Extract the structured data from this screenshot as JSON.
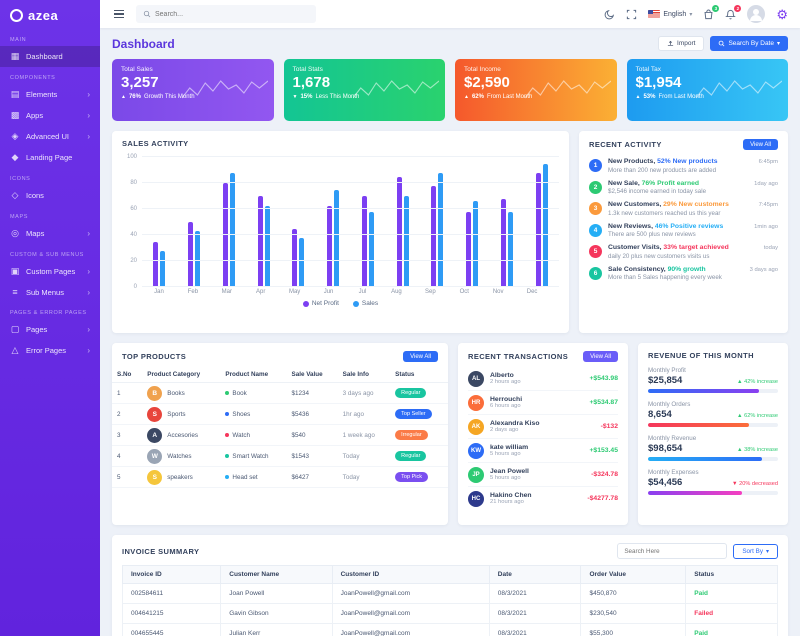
{
  "brand": {
    "name": "azea"
  },
  "colors": {
    "brand_purple": "#6a2fe8",
    "primary_blue": "#2d6cf6",
    "success_green": "#2dca73",
    "danger_red": "#f5365c"
  },
  "sidebar": {
    "sections": [
      {
        "label": "MAIN",
        "items": [
          {
            "label": "Dashboard",
            "icon": "dashboard-icon",
            "active": true,
            "chevron": false
          }
        ]
      },
      {
        "label": "COMPONENTS",
        "items": [
          {
            "label": "Elements",
            "icon": "elements-icon",
            "active": false,
            "chevron": true
          },
          {
            "label": "Apps",
            "icon": "apps-icon",
            "active": false,
            "chevron": true
          },
          {
            "label": "Advanced UI",
            "icon": "advanced-ui-icon",
            "active": false,
            "chevron": true
          },
          {
            "label": "Landing Page",
            "icon": "landing-page-icon",
            "active": false,
            "chevron": false
          }
        ]
      },
      {
        "label": "ICONS",
        "items": [
          {
            "label": "Icons",
            "icon": "icons-icon",
            "active": false,
            "chevron": false
          }
        ]
      },
      {
        "label": "MAPS",
        "items": [
          {
            "label": "Maps",
            "icon": "maps-icon",
            "active": false,
            "chevron": true
          }
        ]
      },
      {
        "label": "CUSTOM & SUB MENUS",
        "items": [
          {
            "label": "Custom Pages",
            "icon": "custom-pages-icon",
            "active": false,
            "chevron": true
          },
          {
            "label": "Sub Menus",
            "icon": "sub-menus-icon",
            "active": false,
            "chevron": true
          }
        ]
      },
      {
        "label": "PAGES & ERROR PAGES",
        "items": [
          {
            "label": "Pages",
            "icon": "pages-icon",
            "active": false,
            "chevron": true
          },
          {
            "label": "Error Pages",
            "icon": "error-pages-icon",
            "active": false,
            "chevron": true
          }
        ]
      }
    ]
  },
  "header": {
    "search_placeholder": "Search...",
    "language": "English",
    "cart_badge": "3",
    "bell_badge": "2"
  },
  "page": {
    "title": "Dashboard",
    "import_label": "Import",
    "search_by_date_label": "Search By Date"
  },
  "stat_cards": [
    {
      "title": "Total Sales",
      "value": "3,257",
      "delta": "76%",
      "note": "Growth This Month",
      "direction": "up",
      "gradient": [
        "#7b49e8",
        "#9257f0"
      ]
    },
    {
      "title": "Total Stats",
      "value": "1,678",
      "delta": "15%",
      "note": "Less This Month",
      "direction": "down",
      "gradient": [
        "#13c594",
        "#2ad26e"
      ]
    },
    {
      "title": "Total Income",
      "value": "$2,590",
      "delta": "62%",
      "note": "From Last Month",
      "direction": "up",
      "gradient": [
        "#f5582c",
        "#fbb034"
      ]
    },
    {
      "title": "Total Tax",
      "value": "$1,954",
      "delta": "53%",
      "note": "From Last Month",
      "direction": "up",
      "gradient": [
        "#1d9bf0",
        "#38c6f5"
      ]
    }
  ],
  "chart_data": {
    "type": "bar",
    "title": "SALES ACTIVITY",
    "categories": [
      "Jan",
      "Feb",
      "Mar",
      "Apr",
      "May",
      "Jun",
      "Jul",
      "Aug",
      "Sep",
      "Oct",
      "Nov",
      "Dec"
    ],
    "series": [
      {
        "name": "Net Profit",
        "color": "#7c3ff2",
        "values": [
          35,
          50,
          80,
          70,
          45,
          62,
          70,
          85,
          78,
          58,
          68,
          88
        ]
      },
      {
        "name": "Sales",
        "color": "#2e9bf5",
        "values": [
          28,
          43,
          88,
          62,
          38,
          75,
          58,
          70,
          88,
          66,
          58,
          95
        ]
      }
    ],
    "ylim": [
      0,
      100
    ],
    "yticks": [
      0,
      20,
      40,
      60,
      80,
      100
    ],
    "grid": true,
    "legend_position": "bottom"
  },
  "recent_activity": {
    "title": "RECENT ACTIVITY",
    "view_all_label": "View All",
    "view_all_color": "#2d6cf6",
    "items": [
      {
        "num": "1",
        "color": "#2d6cf6",
        "title": "New Products,",
        "highlight": "52% New products",
        "desc": "More than 200 new products are added",
        "time": "6:45pm"
      },
      {
        "num": "2",
        "color": "#2dca73",
        "title": "New Sale,",
        "highlight": "76% Profit earned",
        "desc": "$2,546 income earned in today sale",
        "time": "1day ago"
      },
      {
        "num": "3",
        "color": "#fb9a3c",
        "title": "New Customers,",
        "highlight": "29% New customers",
        "desc": "1.3k new customers reached us this year",
        "time": "7:45pm"
      },
      {
        "num": "4",
        "color": "#25aef5",
        "title": "New Reviews,",
        "highlight": "46% Positive reviews",
        "desc": "There are 500 plus new reviews",
        "time": "1min ago"
      },
      {
        "num": "5",
        "color": "#f5365c",
        "title": "Customer Visits,",
        "highlight": "33% target achieved",
        "desc": "daily 20 plus new customers visits us",
        "time": "today"
      },
      {
        "num": "6",
        "color": "#19c5a0",
        "title": "Sale Consistency,",
        "highlight": "90% growth",
        "desc": "More than 5 Sales happening every week",
        "time": "3 days ago"
      }
    ]
  },
  "top_products": {
    "title": "TOP PRODUCTS",
    "view_all_label": "View All",
    "view_all_color": "#2d6cf6",
    "columns": [
      "S.No",
      "Product Category",
      "Product Name",
      "Sale Value",
      "Sale Info",
      "Status"
    ],
    "rows": [
      {
        "sno": "1",
        "category": "Books",
        "icon_letter": "B",
        "icon_bg": "#f0a24e",
        "product": "Book",
        "dot": "#2dca73",
        "value": "$1234",
        "info": "3 days ago",
        "status": "Regular",
        "status_color": "#19c5a0"
      },
      {
        "sno": "2",
        "category": "Sports",
        "icon_letter": "S",
        "icon_bg": "#e8453c",
        "product": "Shoes",
        "dot": "#2d6cf6",
        "value": "$5436",
        "info": "1hr ago",
        "status": "Top Seller",
        "status_color": "#2d6cf6"
      },
      {
        "sno": "3",
        "category": "Accesories",
        "icon_letter": "A",
        "icon_bg": "#3b4863",
        "product": "Watch",
        "dot": "#f5365c",
        "value": "$540",
        "info": "1 week ago",
        "status": "Irregular",
        "status_color": "#fb7b47"
      },
      {
        "sno": "4",
        "category": "Watches",
        "icon_letter": "W",
        "icon_bg": "#9aa5b5",
        "product": "Smart Watch",
        "dot": "#19c5a0",
        "value": "$1543",
        "info": "Today",
        "status": "Regular",
        "status_color": "#19c5a0"
      },
      {
        "sno": "5",
        "category": "speakers",
        "icon_letter": "S",
        "icon_bg": "#f5c63c",
        "product": "Head set",
        "dot": "#25aef5",
        "value": "$6427",
        "info": "Today",
        "status": "Top Pick",
        "status_color": "#7a4ff0"
      }
    ]
  },
  "recent_transactions": {
    "title": "RECENT TRANSACTIONS",
    "view_all_label": "View All",
    "view_all_color": "#6a5df8",
    "items": [
      {
        "initials": "AL",
        "avatar_bg": "#3b4863",
        "name": "Alberto",
        "time": "2 hours ago",
        "amount": "+$543.98",
        "positive": true
      },
      {
        "initials": "HR",
        "avatar_bg": "#fb6d3a",
        "name": "Herrouchi",
        "time": "6 hours ago",
        "amount": "+$534.87",
        "positive": true
      },
      {
        "initials": "AK",
        "avatar_bg": "#f5a623",
        "name": "Alexandra Kiso",
        "time": "2 days ago",
        "amount": "-$132",
        "positive": false
      },
      {
        "initials": "KW",
        "avatar_bg": "#2d6cf6",
        "name": "kate william",
        "time": "5 hours ago",
        "amount": "+$153.45",
        "positive": true
      },
      {
        "initials": "JP",
        "avatar_bg": "#2dca73",
        "name": "Jean Powell",
        "time": "5 hours ago",
        "amount": "-$324.78",
        "positive": false
      },
      {
        "initials": "HC",
        "avatar_bg": "#2d3a8c",
        "name": "Hakino Chen",
        "time": "21 hours ago",
        "amount": "-$4277.78",
        "positive": false
      }
    ]
  },
  "revenue_month": {
    "title": "REVENUE OF THIS MONTH",
    "items": [
      {
        "label": "Monthly Profit",
        "value": "$25,854",
        "delta": "42% increase",
        "positive": true,
        "bar": [
          "#2d6cf6",
          "#8a3ff0"
        ],
        "pct": 85
      },
      {
        "label": "Monthly Orders",
        "value": "8,654",
        "delta": "62% increase",
        "positive": true,
        "bar": [
          "#f5365c",
          "#fb6d3a"
        ],
        "pct": 78
      },
      {
        "label": "Monthly Revenue",
        "value": "$98,654",
        "delta": "38% increase",
        "positive": true,
        "bar": [
          "#25aef5",
          "#2d6cf6"
        ],
        "pct": 88
      },
      {
        "label": "Monthly Expenses",
        "value": "$54,456",
        "delta": "20% decreased",
        "positive": false,
        "bar": [
          "#8a3ff0",
          "#f53fc0"
        ],
        "pct": 72
      }
    ]
  },
  "invoice_summary": {
    "title": "INVOICE SUMMARY",
    "search_placeholder": "Search Here",
    "sort_by_label": "Sort By",
    "columns": [
      "Invoice ID",
      "Customer Name",
      "Customer ID",
      "Date",
      "Order Value",
      "Status"
    ],
    "rows": [
      {
        "id": "002584611",
        "name": "Joan Powell",
        "customer_id": "JoanPowell@gmail.com",
        "date": "08/3/2021",
        "value": "$450,870",
        "status": "Paid",
        "status_color": "#2dca73"
      },
      {
        "id": "004641215",
        "name": "Gavin Gibson",
        "customer_id": "JoanPowell@gmail.com",
        "date": "08/3/2021",
        "value": "$230,540",
        "status": "Failed",
        "status_color": "#f5365c"
      },
      {
        "id": "004655445",
        "name": "Julian Kerr",
        "customer_id": "JoanPowell@gmail.com",
        "date": "08/3/2021",
        "value": "$55,300",
        "status": "Paid",
        "status_color": "#2dca73"
      }
    ]
  }
}
